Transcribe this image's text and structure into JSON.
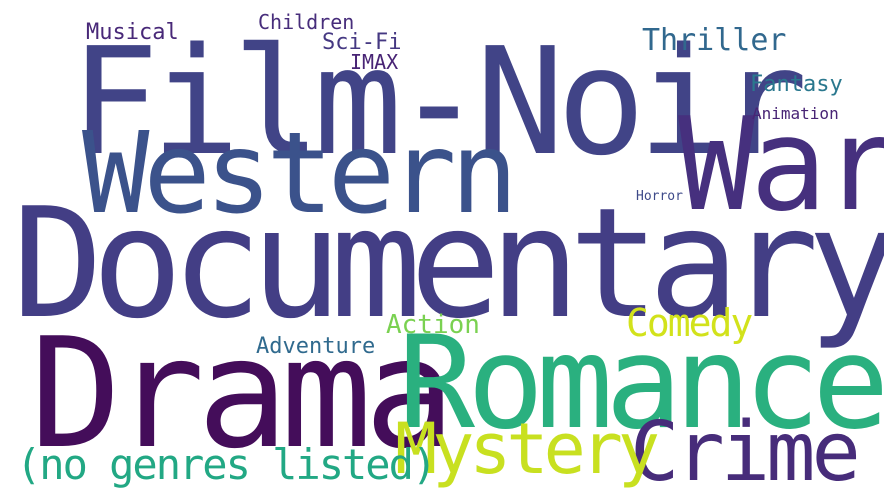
{
  "words": {
    "film_noir": {
      "text": "Film-Noir",
      "color": "#414487"
    },
    "western": {
      "text": "Western",
      "color": "#3b528b"
    },
    "war": {
      "text": "War",
      "color": "#46307e"
    },
    "documentary": {
      "text": "Documentary",
      "color": "#433e85"
    },
    "drama": {
      "text": "Drama",
      "color": "#440d5a"
    },
    "romance": {
      "text": "Romance",
      "color": "#2ab07f"
    },
    "crime": {
      "text": "Crime",
      "color": "#472c7a"
    },
    "mystery": {
      "text": "Mystery",
      "color": "#c8e020"
    },
    "no_genres": {
      "text": "(no genres listed)",
      "color": "#22a884"
    },
    "comedy": {
      "text": "Comedy",
      "color": "#d2e21b"
    },
    "action": {
      "text": "Action",
      "color": "#7ad151"
    },
    "adventure": {
      "text": "Adventure",
      "color": "#306a8e"
    },
    "thriller": {
      "text": "Thriller",
      "color": "#31688e"
    },
    "fantasy": {
      "text": "Fantasy",
      "color": "#2a788e"
    },
    "animation": {
      "text": "Animation",
      "color": "#482475"
    },
    "horror": {
      "text": "Horror",
      "color": "#3e4a89"
    },
    "musical": {
      "text": "Musical",
      "color": "#482878"
    },
    "children": {
      "text": "Children",
      "color": "#472d7b"
    },
    "scifi": {
      "text": "Sci-Fi",
      "color": "#453882"
    },
    "imax": {
      "text": "IMAX",
      "color": "#482475"
    }
  }
}
